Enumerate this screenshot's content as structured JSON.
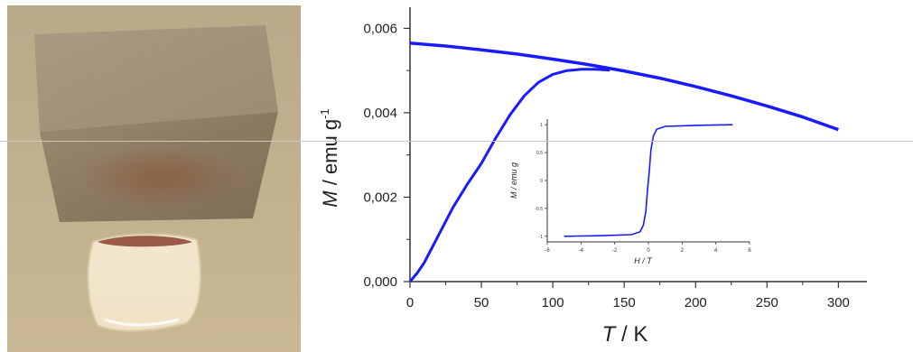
{
  "photo": {
    "description_icon": "magnet-and-ferrofluid-photo"
  },
  "chart_data": [
    {
      "type": "line",
      "title": "",
      "xlabel_italic": "T",
      "xlabel_rest": " / K",
      "ylabel_italic": "M",
      "ylabel_rest": " / emu g",
      "ylabel_sup": "-1",
      "xlim": [
        0,
        320
      ],
      "ylim": [
        0,
        0.0065
      ],
      "xticks": [
        0,
        50,
        100,
        150,
        200,
        250,
        300
      ],
      "xtick_labels": [
        "0",
        "50",
        "100",
        "150",
        "200",
        "250",
        "300"
      ],
      "yticks": [
        0.0,
        0.002,
        0.004,
        0.006
      ],
      "ytick_labels": [
        "0,000",
        "0,002",
        "0,004",
        "0,006"
      ],
      "series_color": "#1a1aff",
      "series": [
        {
          "name": "",
          "x": [
            0,
            25,
            50,
            75,
            100,
            125,
            150,
            175,
            200,
            225,
            250,
            275,
            300
          ],
          "y": [
            0.00565,
            0.00558,
            0.00549,
            0.00539,
            0.00527,
            0.00514,
            0.00499,
            0.00482,
            0.00462,
            0.0044,
            0.00416,
            0.0039,
            0.0036
          ]
        },
        {
          "name": "",
          "x": [
            0,
            5,
            10,
            20,
            30,
            40,
            50,
            60,
            70,
            80,
            90,
            100,
            110,
            120,
            130,
            140
          ],
          "y": [
            0.0,
            0.0002,
            0.00045,
            0.0011,
            0.00175,
            0.0023,
            0.0028,
            0.0034,
            0.00395,
            0.0044,
            0.00472,
            0.00491,
            0.005,
            0.00503,
            0.00503,
            0.00501
          ]
        }
      ]
    },
    {
      "type": "line",
      "title": "",
      "xlabel": "H / T",
      "ylabel": "M / emu g",
      "xlim": [
        -6,
        6
      ],
      "ylim": [
        -1.1,
        1.1
      ],
      "xticks": [
        -6,
        -4,
        -2,
        0,
        2,
        4,
        6
      ],
      "xtick_labels": [
        "-6",
        "-4",
        "-2",
        "0",
        "2",
        "4",
        "6"
      ],
      "yticks": [
        -1,
        -0.5,
        0,
        0.5,
        1
      ],
      "ytick_labels": [
        "-1",
        "-0.5",
        "0",
        "0.5",
        "1"
      ],
      "series_color": "#1a1aff",
      "series": [
        {
          "name": "",
          "x": [
            -5,
            -3,
            -1,
            -0.5,
            -0.3,
            -0.15,
            -0.05,
            0.05,
            0.15,
            0.3,
            0.5,
            1,
            3,
            5
          ],
          "y": [
            -1.0,
            -0.99,
            -0.97,
            -0.92,
            -0.8,
            -0.55,
            -0.15,
            0.15,
            0.55,
            0.8,
            0.92,
            0.97,
            0.99,
            1.0
          ]
        }
      ]
    }
  ]
}
